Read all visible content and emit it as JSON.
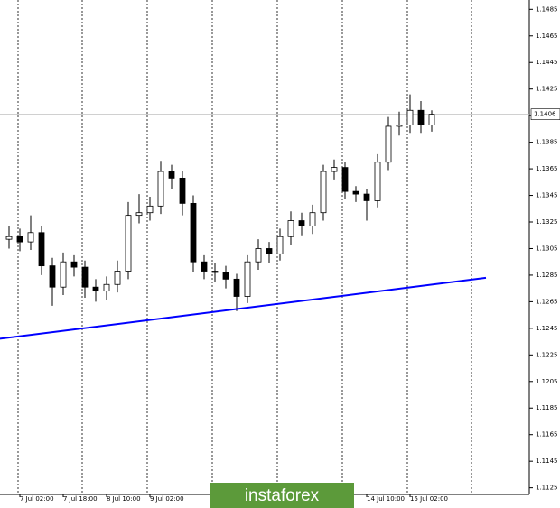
{
  "chart_data": {
    "type": "candlestick",
    "categories": [
      null,
      "7 Jul 02:00",
      null,
      null,
      null,
      "7 Jul 18:00",
      null,
      null,
      null,
      "8 Jul 10:00",
      null,
      null,
      null,
      "9 Jul 02:00",
      null,
      null,
      null,
      null,
      null,
      null,
      null,
      null,
      null,
      null,
      null,
      null,
      null,
      null,
      null,
      null,
      null,
      null,
      null,
      "14 Jul 10:00",
      null,
      null,
      null,
      "15 Jul 02:00",
      null,
      null
    ],
    "open": [
      1.1312,
      1.1314,
      1.131,
      1.1317,
      1.1292,
      1.1276,
      1.1295,
      1.1291,
      1.1276,
      1.1273,
      1.1278,
      1.1288,
      1.133,
      1.1332,
      1.1337,
      1.1363,
      1.1358,
      1.1339,
      1.1295,
      1.1288,
      1.1287,
      1.1282,
      1.1269,
      1.1295,
      1.1305,
      1.1301,
      1.1314,
      1.1326,
      1.1322,
      1.1332,
      1.1363,
      1.1366,
      1.1348,
      1.1346,
      1.1341,
      1.137,
      1.1397,
      1.1398,
      1.1409,
      1.1398
    ],
    "high": [
      1.1322,
      1.132,
      1.133,
      1.1322,
      1.1298,
      1.1302,
      1.13,
      1.1296,
      1.1282,
      1.1284,
      1.1296,
      1.134,
      1.1346,
      1.1344,
      1.1371,
      1.1368,
      1.1363,
      1.1345,
      1.13,
      1.1294,
      1.1292,
      1.1286,
      1.13,
      1.1312,
      1.131,
      1.132,
      1.1333,
      1.1332,
      1.1338,
      1.1368,
      1.1372,
      1.137,
      1.1352,
      1.135,
      1.1376,
      1.1404,
      1.1408,
      1.1421,
      1.1416,
      1.1409
    ],
    "low": [
      1.1305,
      1.1303,
      1.1304,
      1.1285,
      1.1262,
      1.127,
      1.1284,
      1.1268,
      1.1265,
      1.1266,
      1.1272,
      1.1282,
      1.1324,
      1.1326,
      1.1331,
      1.135,
      1.133,
      1.1287,
      1.1282,
      1.128,
      1.1275,
      1.1258,
      1.1264,
      1.1289,
      1.1294,
      1.1296,
      1.1308,
      1.1315,
      1.1316,
      1.1326,
      1.1357,
      1.1342,
      1.134,
      1.1326,
      1.1336,
      1.1364,
      1.139,
      1.1392,
      1.1392,
      1.1393
    ],
    "close": [
      1.1314,
      1.131,
      1.1317,
      1.1292,
      1.1276,
      1.1295,
      1.1291,
      1.1276,
      1.1273,
      1.1278,
      1.1288,
      1.133,
      1.1332,
      1.1337,
      1.1363,
      1.1358,
      1.1339,
      1.1295,
      1.1288,
      1.1287,
      1.1282,
      1.1269,
      1.1295,
      1.1305,
      1.1301,
      1.1314,
      1.1326,
      1.1322,
      1.1332,
      1.1363,
      1.1366,
      1.1348,
      1.1346,
      1.1341,
      1.137,
      1.1397,
      1.1398,
      1.1409,
      1.1398,
      1.1406
    ],
    "up_color": "#ffffff",
    "down_color": "#000000",
    "current_price": 1.1406,
    "trendline": {
      "x": [
        -1,
        44
      ],
      "y": [
        1.1237,
        1.1283
      ],
      "color": "#0000ff"
    },
    "ylim": [
      1.112,
      1.1492
    ],
    "yticks": [
      1.1125,
      1.1145,
      1.1165,
      1.1185,
      1.1205,
      1.1225,
      1.1245,
      1.1265,
      1.1285,
      1.1305,
      1.1325,
      1.1345,
      1.1365,
      1.1385,
      1.1405,
      1.1425,
      1.1445,
      1.1465,
      1.1485
    ],
    "watermark": "instaforex"
  }
}
